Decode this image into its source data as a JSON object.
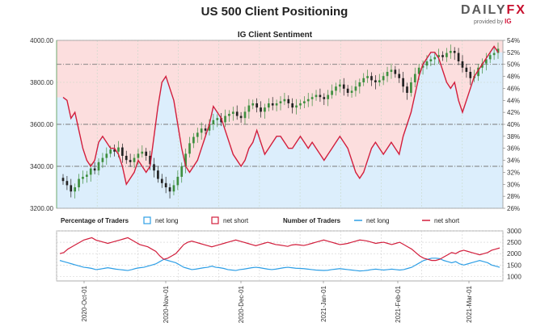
{
  "title": "US 500 Client Positioning",
  "brand": {
    "prefix": "DAILY",
    "suffix": "FX",
    "provided_by": "provided by",
    "ig": "IG"
  },
  "colors": {
    "price_line": "#4d9a4d",
    "long_fill": "#dceefc",
    "short_fill": "#fcdede",
    "net_long": "#2e9fe6",
    "net_short": "#d21e3c",
    "candle_up": "#3f8f3f",
    "candle_down": "#222222",
    "axis_left": "#6ea86e",
    "dashdot": "#7a7a7a"
  },
  "chart_data": [
    {
      "type": "line",
      "title": "IG Client Sentiment",
      "subtype": "candlestick with sentiment line",
      "y_left": {
        "ticks": [
          "3200.00",
          "3400.00",
          "3600.00",
          "3800.00",
          "4000.00"
        ],
        "range": [
          3200,
          4000
        ]
      },
      "y_right": {
        "ticks": [
          "26%",
          "28%",
          "30%",
          "32%",
          "34%",
          "36%",
          "38%",
          "40%",
          "42%",
          "44%",
          "46%",
          "48%",
          "50%",
          "52%",
          "54%"
        ],
        "range": [
          26,
          54
        ]
      },
      "reference_lines": [
        {
          "axis": "right",
          "value": 50
        },
        {
          "axis": "right",
          "value": 40
        },
        {
          "axis": "right",
          "value": 33
        }
      ],
      "x_labels": [
        "2020-Oct-01",
        "2020-Nov-01",
        "2020-Dec-01",
        "2021-Jan-01",
        "2021-Feb-01",
        "2021-Mar-01"
      ],
      "price_close": [
        3330,
        3310,
        3280,
        3300,
        3340,
        3350,
        3360,
        3390,
        3380,
        3420,
        3440,
        3460,
        3480,
        3470,
        3490,
        3450,
        3430,
        3420,
        3440,
        3460,
        3470,
        3450,
        3410,
        3380,
        3340,
        3320,
        3300,
        3280,
        3310,
        3350,
        3400,
        3460,
        3510,
        3540,
        3560,
        3580,
        3570,
        3600,
        3620,
        3630,
        3610,
        3640,
        3650,
        3660,
        3640,
        3630,
        3660,
        3690,
        3700,
        3680,
        3660,
        3680,
        3700,
        3690,
        3700,
        3710,
        3720,
        3700,
        3680,
        3690,
        3700,
        3710,
        3720,
        3730,
        3740,
        3730,
        3720,
        3740,
        3760,
        3780,
        3790,
        3770,
        3750,
        3760,
        3780,
        3800,
        3820,
        3830,
        3810,
        3800,
        3810,
        3830,
        3850,
        3860,
        3840,
        3820,
        3780,
        3750,
        3800,
        3840,
        3870,
        3880,
        3900,
        3910,
        3920,
        3930,
        3920,
        3940,
        3950,
        3940,
        3900,
        3870,
        3850,
        3820,
        3830,
        3870,
        3890,
        3910,
        3930,
        3940,
        3960
      ],
      "sentiment_net_long_pct": [
        44.5,
        44,
        41,
        42,
        39,
        36,
        34,
        33,
        34,
        37,
        38,
        37,
        36,
        36,
        35,
        33,
        30,
        31,
        32,
        34,
        33,
        32,
        33,
        38,
        43,
        47,
        48,
        46,
        44,
        40,
        36,
        33,
        32,
        33,
        34,
        36,
        38,
        40,
        43,
        42,
        41,
        39,
        37,
        35,
        34,
        33,
        34,
        36,
        37,
        39,
        37,
        35,
        36,
        37,
        38,
        38,
        37,
        36,
        36,
        37,
        38,
        37,
        36,
        37,
        36,
        35,
        34,
        35,
        36,
        37,
        38,
        37,
        36,
        34,
        32,
        31,
        32,
        34,
        36,
        37,
        36,
        35,
        36,
        37,
        36,
        35,
        38,
        40,
        42,
        45,
        48,
        50,
        51,
        52,
        52,
        51,
        49,
        47,
        46,
        47,
        44,
        42,
        44,
        46,
        48,
        49,
        50,
        51,
        52,
        53,
        52
      ],
      "ylabel": "",
      "xlabel": ""
    },
    {
      "type": "line",
      "title": "Percentage of Traders",
      "legend_pct": {
        "title": "Percentage of Traders",
        "long": "net long",
        "short": "net short"
      },
      "legend_num": {
        "title": "Number of Traders",
        "long": "net long",
        "short": "net short"
      },
      "y_right": {
        "ticks": [
          "1000",
          "1500",
          "2000",
          "2500",
          "3000"
        ],
        "range": [
          800,
          3000
        ]
      },
      "series": [
        {
          "name": "net long",
          "values": [
            1700,
            1650,
            1600,
            1550,
            1500,
            1450,
            1400,
            1380,
            1350,
            1300,
            1320,
            1350,
            1380,
            1350,
            1320,
            1300,
            1280,
            1260,
            1300,
            1350,
            1380,
            1400,
            1450,
            1500,
            1550,
            1650,
            1750,
            1700,
            1650,
            1600,
            1500,
            1400,
            1350,
            1300,
            1320,
            1350,
            1380,
            1400,
            1450,
            1400,
            1380,
            1350,
            1300,
            1280,
            1260,
            1300,
            1320,
            1350,
            1380,
            1400,
            1380,
            1350,
            1320,
            1300,
            1320,
            1350,
            1380,
            1400,
            1380,
            1360,
            1350,
            1340,
            1320,
            1300,
            1280,
            1270,
            1260,
            1270,
            1300,
            1320,
            1340,
            1320,
            1300,
            1280,
            1260,
            1240,
            1250,
            1270,
            1300,
            1320,
            1300,
            1280,
            1300,
            1320,
            1300,
            1280,
            1300,
            1350,
            1400,
            1500,
            1600,
            1700,
            1750,
            1800,
            1800,
            1780,
            1700,
            1650,
            1600,
            1650,
            1550,
            1500,
            1550,
            1600,
            1650,
            1700,
            1650,
            1600,
            1500,
            1450,
            1400
          ]
        },
        {
          "name": "net short",
          "values": [
            2000,
            2050,
            2200,
            2300,
            2400,
            2500,
            2600,
            2650,
            2700,
            2600,
            2550,
            2500,
            2450,
            2500,
            2550,
            2600,
            2650,
            2700,
            2600,
            2500,
            2400,
            2350,
            2300,
            2200,
            2100,
            1900,
            1750,
            1800,
            1900,
            2000,
            2200,
            2400,
            2500,
            2550,
            2500,
            2450,
            2400,
            2350,
            2300,
            2350,
            2400,
            2450,
            2500,
            2550,
            2600,
            2550,
            2500,
            2450,
            2400,
            2350,
            2400,
            2450,
            2500,
            2450,
            2400,
            2380,
            2350,
            2320,
            2380,
            2400,
            2380,
            2360,
            2400,
            2450,
            2500,
            2550,
            2600,
            2550,
            2500,
            2450,
            2400,
            2420,
            2450,
            2500,
            2550,
            2600,
            2580,
            2550,
            2500,
            2450,
            2480,
            2500,
            2450,
            2400,
            2450,
            2500,
            2400,
            2300,
            2200,
            2050,
            1900,
            1800,
            1750,
            1700,
            1700,
            1750,
            1850,
            1950,
            2050,
            2000,
            2100,
            2150,
            2100,
            2050,
            2000,
            1950,
            2000,
            2050,
            2150,
            2200,
            2250
          ]
        }
      ]
    }
  ]
}
